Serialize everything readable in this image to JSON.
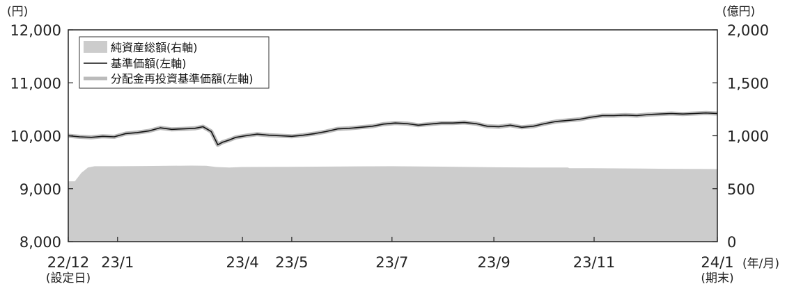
{
  "chart_data": {
    "type": "line",
    "left_axis": {
      "unit": "(円)",
      "ylim": [
        8000,
        12000
      ],
      "ticks": [
        "8,000",
        "9,000",
        "10,000",
        "11,000",
        "12,000"
      ]
    },
    "right_axis": {
      "unit": "(億円)",
      "ylim": [
        0,
        2000
      ],
      "ticks": [
        "0",
        "500",
        "1,000",
        "1,500",
        "2,000"
      ]
    },
    "x_axis": {
      "unit": "(年/月)",
      "range": [
        "2022-12-16",
        "2024-01-15"
      ],
      "ticks": [
        {
          "date": "2022-12-16",
          "label": "22/12",
          "sub": "(設定日)"
        },
        {
          "date": "2023-01-15",
          "label": "23/1"
        },
        {
          "date": "2023-04-01",
          "label": "23/4"
        },
        {
          "date": "2023-05-01",
          "label": "23/5"
        },
        {
          "date": "2023-07-01",
          "label": "23/7"
        },
        {
          "date": "2023-09-01",
          "label": "23/9"
        },
        {
          "date": "2023-11-01",
          "label": "23/11"
        },
        {
          "date": "2024-01-15",
          "label": "24/1",
          "sub": "(期末)"
        }
      ]
    },
    "legend": {
      "placement": "top-left",
      "items": [
        {
          "label": "純資産総額(右軸)",
          "kind": "area",
          "color": "#cccccc"
        },
        {
          "label": "基準価額(左軸)",
          "kind": "line",
          "color": "#111111"
        },
        {
          "label": "分配金再投資基準価額(左軸)",
          "kind": "line",
          "color": "#bbbbbb"
        }
      ]
    },
    "series": [
      {
        "name": "純資産総額(右軸)",
        "axis": "right",
        "x": [
          "2022-12-16",
          "2022-12-20",
          "2022-12-24",
          "2022-12-28",
          "2023-01-01",
          "2023-01-15",
          "2023-02-01",
          "2023-02-15",
          "2023-03-01",
          "2023-03-10",
          "2023-03-16",
          "2023-03-24",
          "2023-04-01",
          "2023-05-01",
          "2023-06-01",
          "2023-07-01",
          "2023-08-01",
          "2023-09-01",
          "2023-10-01",
          "2023-10-16",
          "2023-10-17",
          "2023-11-01",
          "2023-12-01",
          "2023-12-15",
          "2024-01-15"
        ],
        "values": [
          570,
          570,
          650,
          700,
          712,
          712,
          714,
          716,
          718,
          716,
          705,
          700,
          705,
          707,
          710,
          712,
          708,
          702,
          700,
          700,
          693,
          693,
          690,
          688,
          685
        ]
      },
      {
        "name": "基準価額(左軸)",
        "axis": "left",
        "x": [
          "2022-12-16",
          "2022-12-23",
          "2022-12-30",
          "2023-01-06",
          "2023-01-13",
          "2023-01-20",
          "2023-01-27",
          "2023-02-03",
          "2023-02-10",
          "2023-02-17",
          "2023-02-24",
          "2023-03-03",
          "2023-03-08",
          "2023-03-13",
          "2023-03-17",
          "2023-03-20",
          "2023-03-24",
          "2023-03-28",
          "2023-04-03",
          "2023-04-10",
          "2023-04-17",
          "2023-04-24",
          "2023-05-01",
          "2023-05-08",
          "2023-05-15",
          "2023-05-22",
          "2023-05-29",
          "2023-06-05",
          "2023-06-12",
          "2023-06-19",
          "2023-06-26",
          "2023-07-03",
          "2023-07-10",
          "2023-07-17",
          "2023-07-24",
          "2023-07-31",
          "2023-08-07",
          "2023-08-14",
          "2023-08-21",
          "2023-08-28",
          "2023-09-04",
          "2023-09-11",
          "2023-09-18",
          "2023-09-25",
          "2023-10-02",
          "2023-10-09",
          "2023-10-16",
          "2023-10-23",
          "2023-10-30",
          "2023-11-06",
          "2023-11-13",
          "2023-11-20",
          "2023-11-27",
          "2023-12-04",
          "2023-12-11",
          "2023-12-18",
          "2023-12-25",
          "2024-01-01",
          "2024-01-08",
          "2024-01-15"
        ],
        "values": [
          10000,
          9980,
          9970,
          9990,
          9980,
          10040,
          10060,
          10090,
          10150,
          10120,
          10130,
          10140,
          10170,
          10080,
          9830,
          9880,
          9920,
          9970,
          10000,
          10030,
          10010,
          10000,
          9990,
          10010,
          10040,
          10080,
          10130,
          10140,
          10160,
          10180,
          10220,
          10240,
          10230,
          10200,
          10220,
          10240,
          10240,
          10250,
          10230,
          10180,
          10170,
          10200,
          10160,
          10180,
          10230,
          10270,
          10290,
          10310,
          10350,
          10380,
          10380,
          10390,
          10380,
          10400,
          10410,
          10420,
          10410,
          10420,
          10430,
          10420
        ]
      },
      {
        "name": "分配金再投資基準価額(左軸)",
        "axis": "left",
        "x": [
          "2022-12-16",
          "2022-12-23",
          "2022-12-30",
          "2023-01-06",
          "2023-01-13",
          "2023-01-20",
          "2023-01-27",
          "2023-02-03",
          "2023-02-10",
          "2023-02-17",
          "2023-02-24",
          "2023-03-03",
          "2023-03-08",
          "2023-03-13",
          "2023-03-17",
          "2023-03-20",
          "2023-03-24",
          "2023-03-28",
          "2023-04-03",
          "2023-04-10",
          "2023-04-17",
          "2023-04-24",
          "2023-05-01",
          "2023-05-08",
          "2023-05-15",
          "2023-05-22",
          "2023-05-29",
          "2023-06-05",
          "2023-06-12",
          "2023-06-19",
          "2023-06-26",
          "2023-07-03",
          "2023-07-10",
          "2023-07-17",
          "2023-07-24",
          "2023-07-31",
          "2023-08-07",
          "2023-08-14",
          "2023-08-21",
          "2023-08-28",
          "2023-09-04",
          "2023-09-11",
          "2023-09-18",
          "2023-09-25",
          "2023-10-02",
          "2023-10-09",
          "2023-10-16",
          "2023-10-23",
          "2023-10-30",
          "2023-11-06",
          "2023-11-13",
          "2023-11-20",
          "2023-11-27",
          "2023-12-04",
          "2023-12-11",
          "2023-12-18",
          "2023-12-25",
          "2024-01-01",
          "2024-01-08",
          "2024-01-15"
        ],
        "values": [
          10000,
          9980,
          9970,
          9990,
          9980,
          10040,
          10060,
          10090,
          10150,
          10120,
          10130,
          10140,
          10170,
          10080,
          9830,
          9880,
          9920,
          9970,
          10000,
          10030,
          10010,
          10000,
          9990,
          10010,
          10040,
          10080,
          10130,
          10140,
          10160,
          10180,
          10220,
          10240,
          10230,
          10200,
          10220,
          10240,
          10240,
          10250,
          10230,
          10180,
          10170,
          10200,
          10160,
          10180,
          10230,
          10270,
          10290,
          10310,
          10350,
          10380,
          10380,
          10390,
          10380,
          10400,
          10410,
          10420,
          10410,
          10420,
          10430,
          10420
        ]
      }
    ],
    "grid": false
  }
}
